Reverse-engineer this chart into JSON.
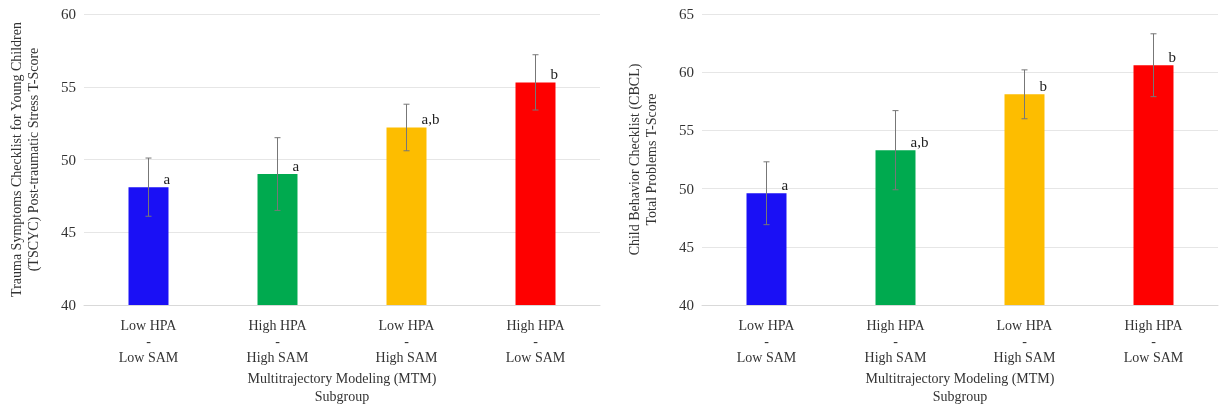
{
  "chart_data": [
    {
      "type": "bar",
      "xlabel": "Multitrajectory Modeling (MTM)\nSubgroup",
      "ylabel": "Trauma Symptoms Checklist for Young Children\n(TSCYC) Post-traumatic Stress T-Score",
      "categories": [
        "Low HPA\n-\nLow SAM",
        "High HPA\n-\nHigh SAM",
        "Low HPA\n-\nHigh SAM",
        "High HPA\n-\nLow SAM"
      ],
      "values": [
        48.1,
        49.0,
        52.2,
        55.3
      ],
      "errors": [
        2.0,
        2.5,
        1.6,
        1.9
      ],
      "colors": [
        "#1a10f5",
        "#00aa4f",
        "#fdbd00",
        "#fe0000"
      ],
      "ylim": [
        40,
        60
      ],
      "yticks": [
        40,
        45,
        50,
        55,
        60
      ],
      "grid": "y",
      "annotations": [
        {
          "text": "a",
          "x": "Low HPA\n-\nLow SAM",
          "y": 48.1
        },
        {
          "text": "a",
          "x": "High HPA\n-\nHigh SAM",
          "y": 49.0
        },
        {
          "text": "a,b",
          "x": "Low HPA\n-\nHigh SAM",
          "y": 52.2
        },
        {
          "text": "b",
          "x": "High HPA\n-\nLow SAM",
          "y": 55.3
        }
      ]
    },
    {
      "type": "bar",
      "xlabel": "Multitrajectory Modeling (MTM)\nSubgroup",
      "ylabel": "Child Behavior Checklist (CBCL)\nTotal Problems T-Score",
      "categories": [
        "Low HPA\n-\nLow SAM",
        "High HPA\n-\nHigh SAM",
        "Low HPA\n-\nHigh SAM",
        "High HPA\n-\nLow SAM"
      ],
      "values": [
        49.6,
        53.3,
        58.1,
        60.6
      ],
      "errors": [
        2.7,
        3.4,
        2.1,
        2.7
      ],
      "colors": [
        "#1a10f5",
        "#00aa4f",
        "#fdbd00",
        "#fe0000"
      ],
      "ylim": [
        40,
        65
      ],
      "yticks": [
        40,
        45,
        50,
        55,
        60,
        65
      ],
      "grid": "y",
      "annotations": [
        {
          "text": "a",
          "x": "Low HPA\n-\nLow SAM",
          "y": 49.6
        },
        {
          "text": "a,b",
          "x": "High HPA\n-\nHigh SAM",
          "y": 53.3
        },
        {
          "text": "b",
          "x": "Low HPA\n-\nHigh SAM",
          "y": 58.1
        },
        {
          "text": "b",
          "x": "High HPA\n-\nLow SAM",
          "y": 60.6
        }
      ]
    }
  ]
}
